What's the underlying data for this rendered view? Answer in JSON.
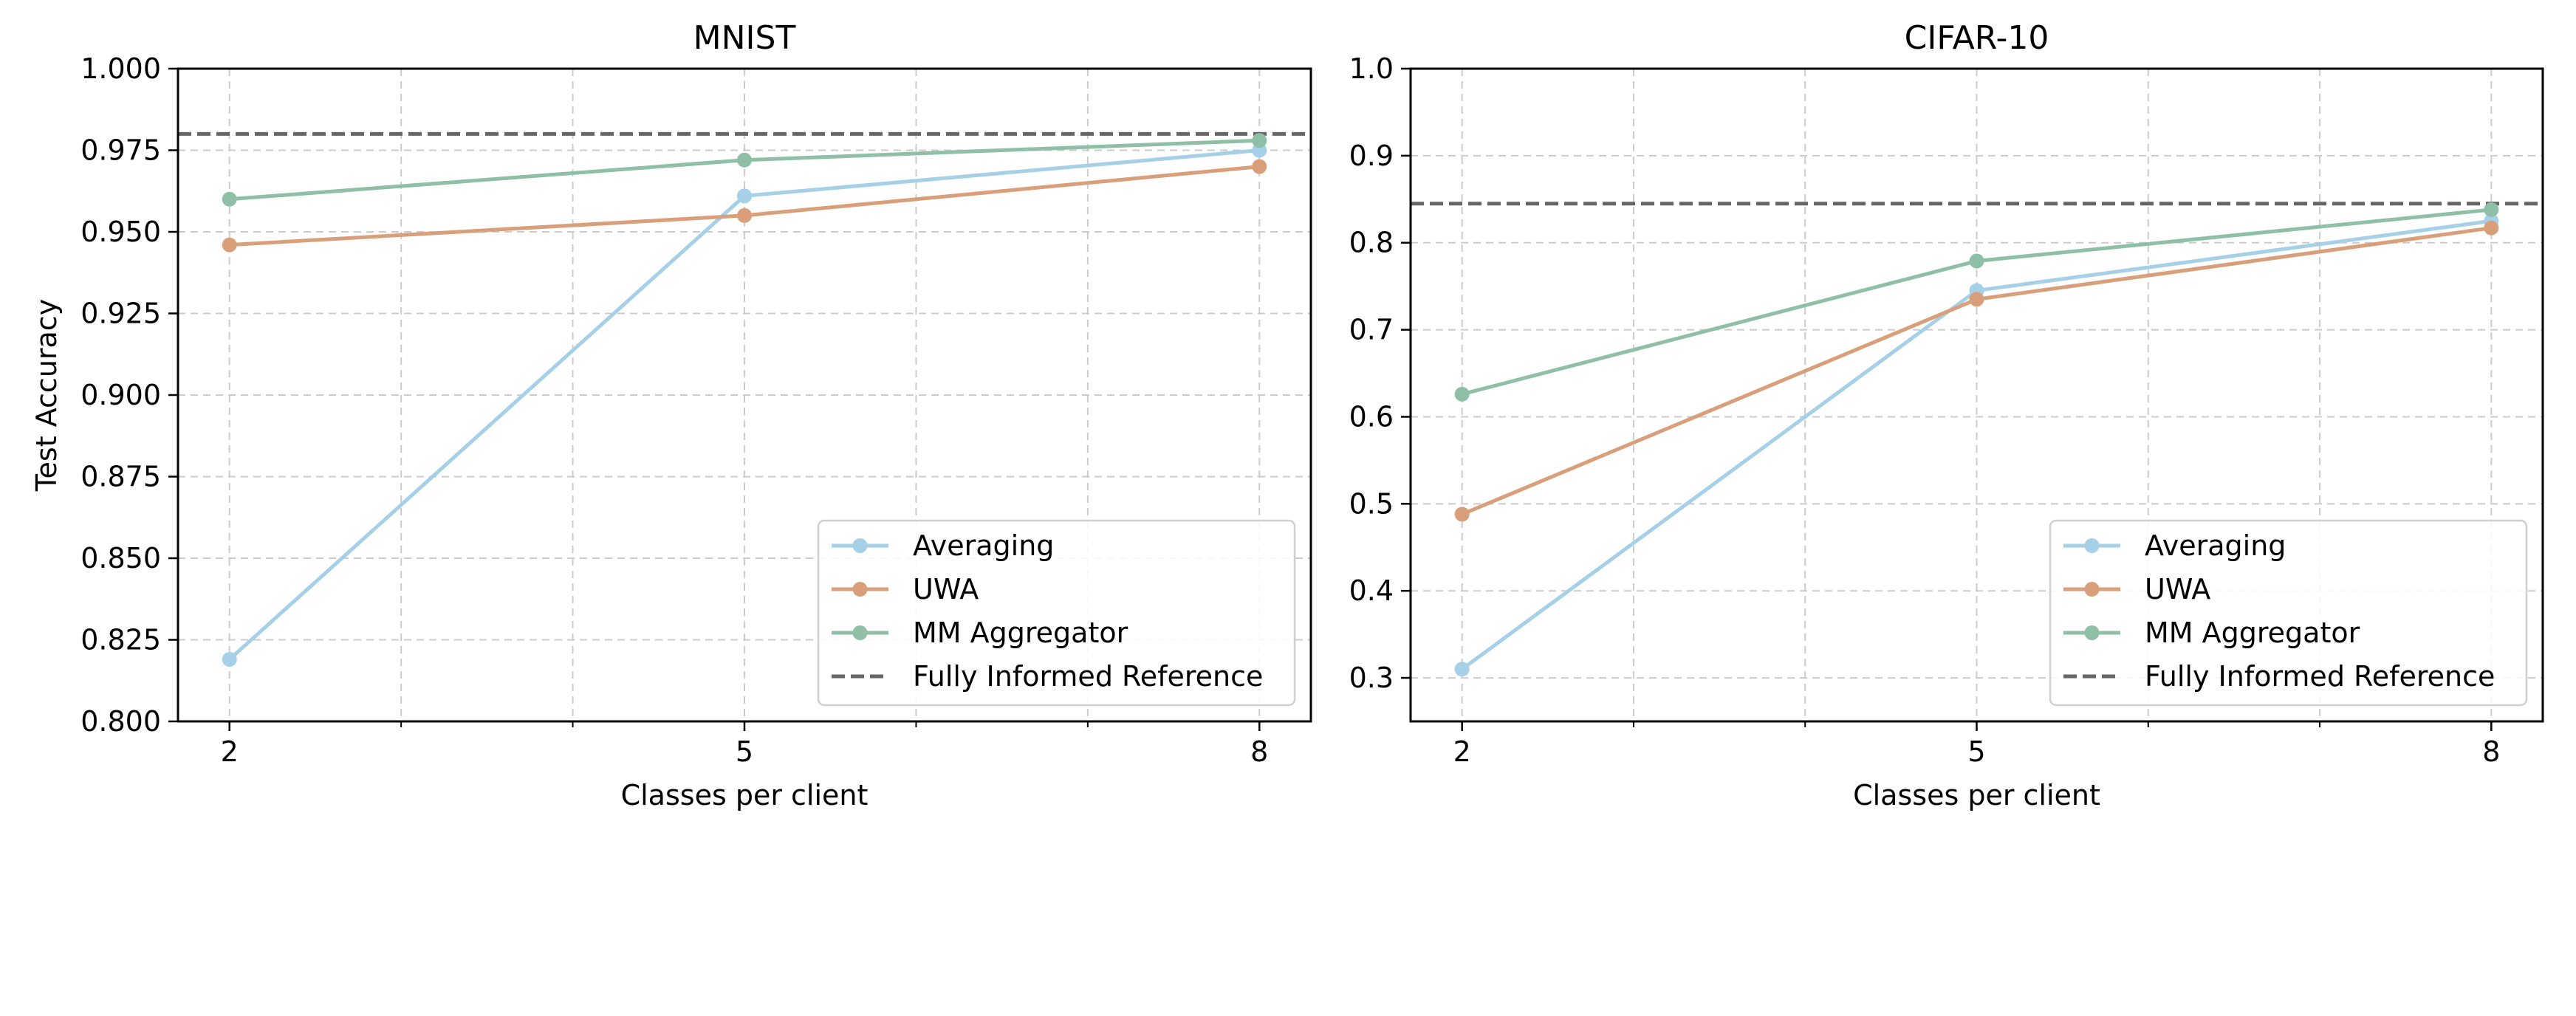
{
  "chart_data": [
    {
      "type": "line",
      "title": "MNIST",
      "xlabel": "Classes per client",
      "ylabel": "Test Accuracy",
      "x": [
        2,
        5,
        8
      ],
      "xlim": [
        1.7,
        8.3
      ],
      "ylim": [
        0.8,
        1.0
      ],
      "xticks": [
        2,
        5,
        8
      ],
      "xtick_labels": [
        "2",
        "5",
        "8"
      ],
      "x_minor_ticks": [
        3,
        4,
        6,
        7
      ],
      "yticks": [
        0.8,
        0.825,
        0.85,
        0.875,
        0.9,
        0.925,
        0.95,
        0.975,
        1.0
      ],
      "ytick_labels": [
        "0.800",
        "0.825",
        "0.850",
        "0.875",
        "0.900",
        "0.925",
        "0.950",
        "0.975",
        "1.000"
      ],
      "grid": true,
      "legend_position": "lower right",
      "series": [
        {
          "name": "Averaging",
          "color": "#a6cfe8",
          "values": [
            0.819,
            0.961,
            0.975
          ]
        },
        {
          "name": "UWA",
          "color": "#d99f7b",
          "values": [
            0.946,
            0.955,
            0.97
          ]
        },
        {
          "name": "MM Aggregator",
          "color": "#8fbfa6",
          "values": [
            0.96,
            0.972,
            0.978
          ]
        }
      ],
      "reference": {
        "name": "Fully Informed Reference",
        "color": "#666666",
        "value": 0.98
      }
    },
    {
      "type": "line",
      "title": "CIFAR-10",
      "xlabel": "Classes per client",
      "ylabel": "",
      "x": [
        2,
        5,
        8
      ],
      "xlim": [
        1.7,
        8.3
      ],
      "ylim": [
        0.25,
        1.0
      ],
      "xticks": [
        2,
        5,
        8
      ],
      "xtick_labels": [
        "2",
        "5",
        "8"
      ],
      "x_minor_ticks": [
        3,
        4,
        6,
        7
      ],
      "yticks": [
        0.3,
        0.4,
        0.5,
        0.6,
        0.7,
        0.8,
        0.9,
        1.0
      ],
      "ytick_labels": [
        "0.3",
        "0.4",
        "0.5",
        "0.6",
        "0.7",
        "0.8",
        "0.9",
        "1.0"
      ],
      "grid": true,
      "legend_position": "lower right",
      "series": [
        {
          "name": "Averaging",
          "color": "#a6cfe8",
          "values": [
            0.31,
            0.745,
            0.825
          ]
        },
        {
          "name": "UWA",
          "color": "#d99f7b",
          "values": [
            0.488,
            0.735,
            0.817
          ]
        },
        {
          "name": "MM Aggregator",
          "color": "#8fbfa6",
          "values": [
            0.626,
            0.779,
            0.838
          ]
        }
      ],
      "reference": {
        "name": "Fully Informed Reference",
        "color": "#666666",
        "value": 0.845
      }
    }
  ]
}
